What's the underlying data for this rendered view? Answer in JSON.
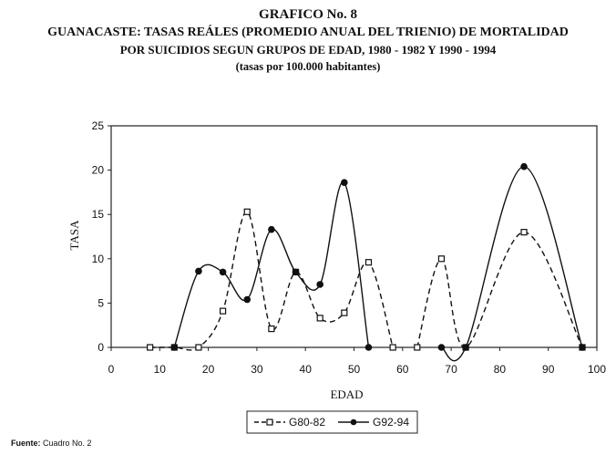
{
  "header": {
    "title": "GRAFICO No. 8",
    "subtitle_line1": "GUANACASTE: TASAS REÁLES (PROMEDIO ANUAL DEL TRIENIO) DE MORTALIDAD",
    "subtitle_line2": "POR SUICIDIOS SEGUN GRUPOS DE EDAD, 1980 - 1982 Y 1990 - 1994",
    "subtitle_line3": "(tasas por 100.000 habitantes)"
  },
  "footer": {
    "source_label": "Fuente:",
    "source_text": "Cuadro No. 2"
  },
  "chart_data": {
    "type": "line",
    "xlabel": "EDAD",
    "ylabel": "TASA",
    "xlim": [
      0,
      100
    ],
    "ylim": [
      0,
      25
    ],
    "xticks": [
      0,
      10,
      20,
      30,
      40,
      50,
      60,
      70,
      80,
      90,
      100
    ],
    "yticks": [
      0,
      5,
      10,
      15,
      20,
      25
    ],
    "grid": false,
    "legend_position": "bottom",
    "series": [
      {
        "name": "G80-82",
        "style": "dashed",
        "marker": "square",
        "color": "#111111",
        "segments": [
          [
            [
              8,
              0
            ],
            [
              13,
              0
            ],
            [
              18,
              0
            ],
            [
              23,
              4.1
            ],
            [
              28,
              15.3
            ],
            [
              33,
              2.1
            ],
            [
              38,
              8.5
            ],
            [
              43,
              3.3
            ],
            [
              48,
              3.9
            ],
            [
              53,
              9.6
            ],
            [
              58,
              0
            ]
          ],
          [
            [
              63,
              0
            ],
            [
              68,
              10
            ],
            [
              73,
              0
            ],
            [
              85,
              13
            ],
            [
              97,
              0
            ]
          ]
        ]
      },
      {
        "name": "G92-94",
        "style": "solid",
        "marker": "circle",
        "color": "#111111",
        "segments": [
          [
            [
              13,
              0
            ],
            [
              18,
              8.6
            ],
            [
              23,
              8.5
            ],
            [
              28,
              5.4
            ],
            [
              33,
              13.3
            ],
            [
              38,
              8.5
            ],
            [
              43,
              7.1
            ],
            [
              48,
              18.6
            ],
            [
              53,
              0
            ]
          ],
          [
            [
              68,
              0
            ],
            [
              73,
              0
            ],
            [
              85,
              20.4
            ],
            [
              97,
              0
            ]
          ]
        ]
      }
    ]
  }
}
